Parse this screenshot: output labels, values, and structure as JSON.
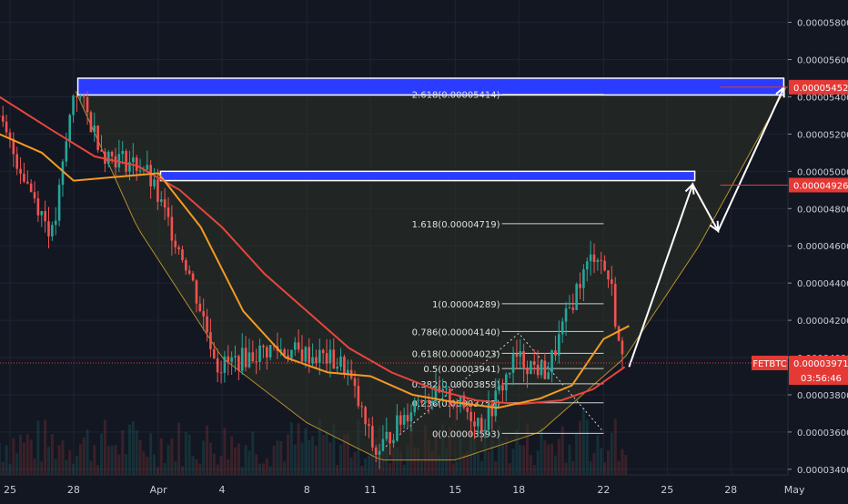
{
  "symbol": "FETBTC",
  "countdown": "03:56:46",
  "colors": {
    "background": "#131722",
    "grid": "#1f2433",
    "candle_up": "#26a69a",
    "candle_down": "#ef5350",
    "ma_fast": "#f59a23",
    "ma_slow": "#e8453c",
    "zone": "#2a3cff",
    "bowl_fill": "#2e3326",
    "bowl_line": "#b8902a",
    "price_tag": "#e53935",
    "fib_line": "#d0d0d0"
  },
  "chart_data": {
    "type": "candlestick",
    "x_axis": {
      "tick_labels": [
        "25",
        "28",
        "Apr",
        "4",
        "8",
        "11",
        "15",
        "18",
        "22",
        "25",
        "28",
        "May"
      ],
      "tick_days": [
        0,
        3,
        7,
        10,
        14,
        17,
        21,
        24,
        28,
        31,
        34,
        37
      ]
    },
    "y_axis": {
      "range": [
        3.37e-05,
        5.92e-05
      ],
      "tick_labels": [
        "0.00005800",
        "0.00005600",
        "0.00005400",
        "0.00005200",
        "0.00005000",
        "0.00004800",
        "0.00004600",
        "0.00004400",
        "0.00004200",
        "0.00004000",
        "0.00003800",
        "0.00003600",
        "0.00003400"
      ],
      "ticks": [
        5.8e-05,
        5.6e-05,
        5.4e-05,
        5.2e-05,
        5e-05,
        4.8e-05,
        4.6e-05,
        4.4e-05,
        4.2e-05,
        4e-05,
        3.8e-05,
        3.6e-05,
        3.4e-05
      ]
    },
    "price_tags": [
      {
        "label": "0.00005452",
        "value": 5.452e-05
      },
      {
        "label": "0.00004926",
        "value": 4.926e-05
      },
      {
        "label": "0.00003971",
        "value": 3.971e-05
      }
    ],
    "current_price": 3.971e-05,
    "fib_levels": [
      {
        "label": "2.618(0.00005414)",
        "value": 5.414e-05
      },
      {
        "label": "1.618(0.00004719)",
        "value": 4.719e-05
      },
      {
        "label": "1(0.00004289)",
        "value": 4.289e-05
      },
      {
        "label": "0.786(0.00004140)",
        "value": 4.14e-05
      },
      {
        "label": "0.618(0.00004023)",
        "value": 4.023e-05
      },
      {
        "label": "0.5(0.00003941)",
        "value": 3.941e-05
      },
      {
        "label": "0.382(0.00003859)",
        "value": 3.859e-05
      },
      {
        "label": "0.236(0.00003757)",
        "value": 3.757e-05
      },
      {
        "label": "0(0.00003593)",
        "value": 3.593e-05
      }
    ],
    "fib_x_range_days": [
      23.2,
      28.0
    ],
    "zones": [
      {
        "name": "upper-resistance",
        "day_start": 3.2,
        "day_end": 36.5,
        "low": 5.41e-05,
        "high": 5.5e-05
      },
      {
        "name": "mid-resistance",
        "day_start": 7.1,
        "day_end": 32.3,
        "low": 4.95e-05,
        "high": 5e-05
      }
    ],
    "projection_path": [
      {
        "day": 29.2,
        "value": 3.95e-05
      },
      {
        "day": 32.2,
        "value": 4.93e-05
      },
      {
        "day": 33.4,
        "value": 4.68e-05
      },
      {
        "day": 36.5,
        "value": 5.45e-05
      }
    ],
    "ohlc_key_points": [
      {
        "day": -0.5,
        "value": 5.3e-05
      },
      {
        "day": 2.2,
        "value": 4.65e-05
      },
      {
        "day": 3.2,
        "value": 5.46e-05
      },
      {
        "day": 4.6,
        "value": 5.1e-05
      },
      {
        "day": 6.5,
        "value": 5.02e-05
      },
      {
        "day": 8.5,
        "value": 4.5e-05
      },
      {
        "day": 10.0,
        "value": 3.95e-05
      },
      {
        "day": 12.5,
        "value": 4.05e-05
      },
      {
        "day": 15.0,
        "value": 4e-05
      },
      {
        "day": 16.0,
        "value": 3.95e-05
      },
      {
        "day": 17.4,
        "value": 3.48e-05
      },
      {
        "day": 19.5,
        "value": 3.8e-05
      },
      {
        "day": 21.0,
        "value": 3.78e-05
      },
      {
        "day": 22.5,
        "value": 3.64e-05
      },
      {
        "day": 24.0,
        "value": 4e-05
      },
      {
        "day": 25.5,
        "value": 3.92e-05
      },
      {
        "day": 27.0,
        "value": 4.4e-05
      },
      {
        "day": 27.8,
        "value": 4.58e-05
      },
      {
        "day": 28.5,
        "value": 4.4e-05
      },
      {
        "day": 29.0,
        "value": 3.98e-05
      }
    ],
    "ma_fast": [
      {
        "day": -0.5,
        "value": 5.2e-05
      },
      {
        "day": 1.5,
        "value": 5.1e-05
      },
      {
        "day": 3.0,
        "value": 4.95e-05
      },
      {
        "day": 5.0,
        "value": 4.97e-05
      },
      {
        "day": 7.0,
        "value": 4.99e-05
      },
      {
        "day": 9.0,
        "value": 4.7e-05
      },
      {
        "day": 11.0,
        "value": 4.25e-05
      },
      {
        "day": 13.0,
        "value": 4e-05
      },
      {
        "day": 15.0,
        "value": 3.92e-05
      },
      {
        "day": 17.0,
        "value": 3.9e-05
      },
      {
        "day": 19.0,
        "value": 3.8e-05
      },
      {
        "day": 21.0,
        "value": 3.76e-05
      },
      {
        "day": 23.0,
        "value": 3.73e-05
      },
      {
        "day": 25.0,
        "value": 3.78e-05
      },
      {
        "day": 26.5,
        "value": 3.85e-05
      },
      {
        "day": 28.0,
        "value": 4.1e-05
      },
      {
        "day": 29.2,
        "value": 4.17e-05
      }
    ],
    "ma_slow": [
      {
        "day": -0.5,
        "value": 5.4e-05
      },
      {
        "day": 2.0,
        "value": 5.22e-05
      },
      {
        "day": 4.0,
        "value": 5.08e-05
      },
      {
        "day": 6.0,
        "value": 5.03e-05
      },
      {
        "day": 8.0,
        "value": 4.9e-05
      },
      {
        "day": 10.0,
        "value": 4.7e-05
      },
      {
        "day": 12.0,
        "value": 4.45e-05
      },
      {
        "day": 14.0,
        "value": 4.25e-05
      },
      {
        "day": 16.0,
        "value": 4.05e-05
      },
      {
        "day": 18.0,
        "value": 3.92e-05
      },
      {
        "day": 20.0,
        "value": 3.83e-05
      },
      {
        "day": 22.0,
        "value": 3.77e-05
      },
      {
        "day": 24.0,
        "value": 3.75e-05
      },
      {
        "day": 26.0,
        "value": 3.77e-05
      },
      {
        "day": 27.5,
        "value": 3.83e-05
      },
      {
        "day": 29.0,
        "value": 3.95e-05
      }
    ],
    "bowl_curve": [
      {
        "day": 3.1,
        "value": 5.43e-05
      },
      {
        "day": 6.0,
        "value": 4.7e-05
      },
      {
        "day": 10.0,
        "value": 4e-05
      },
      {
        "day": 14.0,
        "value": 3.65e-05
      },
      {
        "day": 17.5,
        "value": 3.45e-05
      },
      {
        "day": 21.0,
        "value": 3.45e-05
      },
      {
        "day": 25.0,
        "value": 3.6e-05
      },
      {
        "day": 29.0,
        "value": 4e-05
      },
      {
        "day": 32.5,
        "value": 4.6e-05
      },
      {
        "day": 36.6,
        "value": 5.45e-05
      }
    ],
    "dotted_triangle": [
      {
        "day": 17.4,
        "value": 3.49e-05
      },
      {
        "day": 24.0,
        "value": 4.13e-05
      },
      {
        "day": 28.0,
        "value": 3.6e-05
      }
    ]
  }
}
